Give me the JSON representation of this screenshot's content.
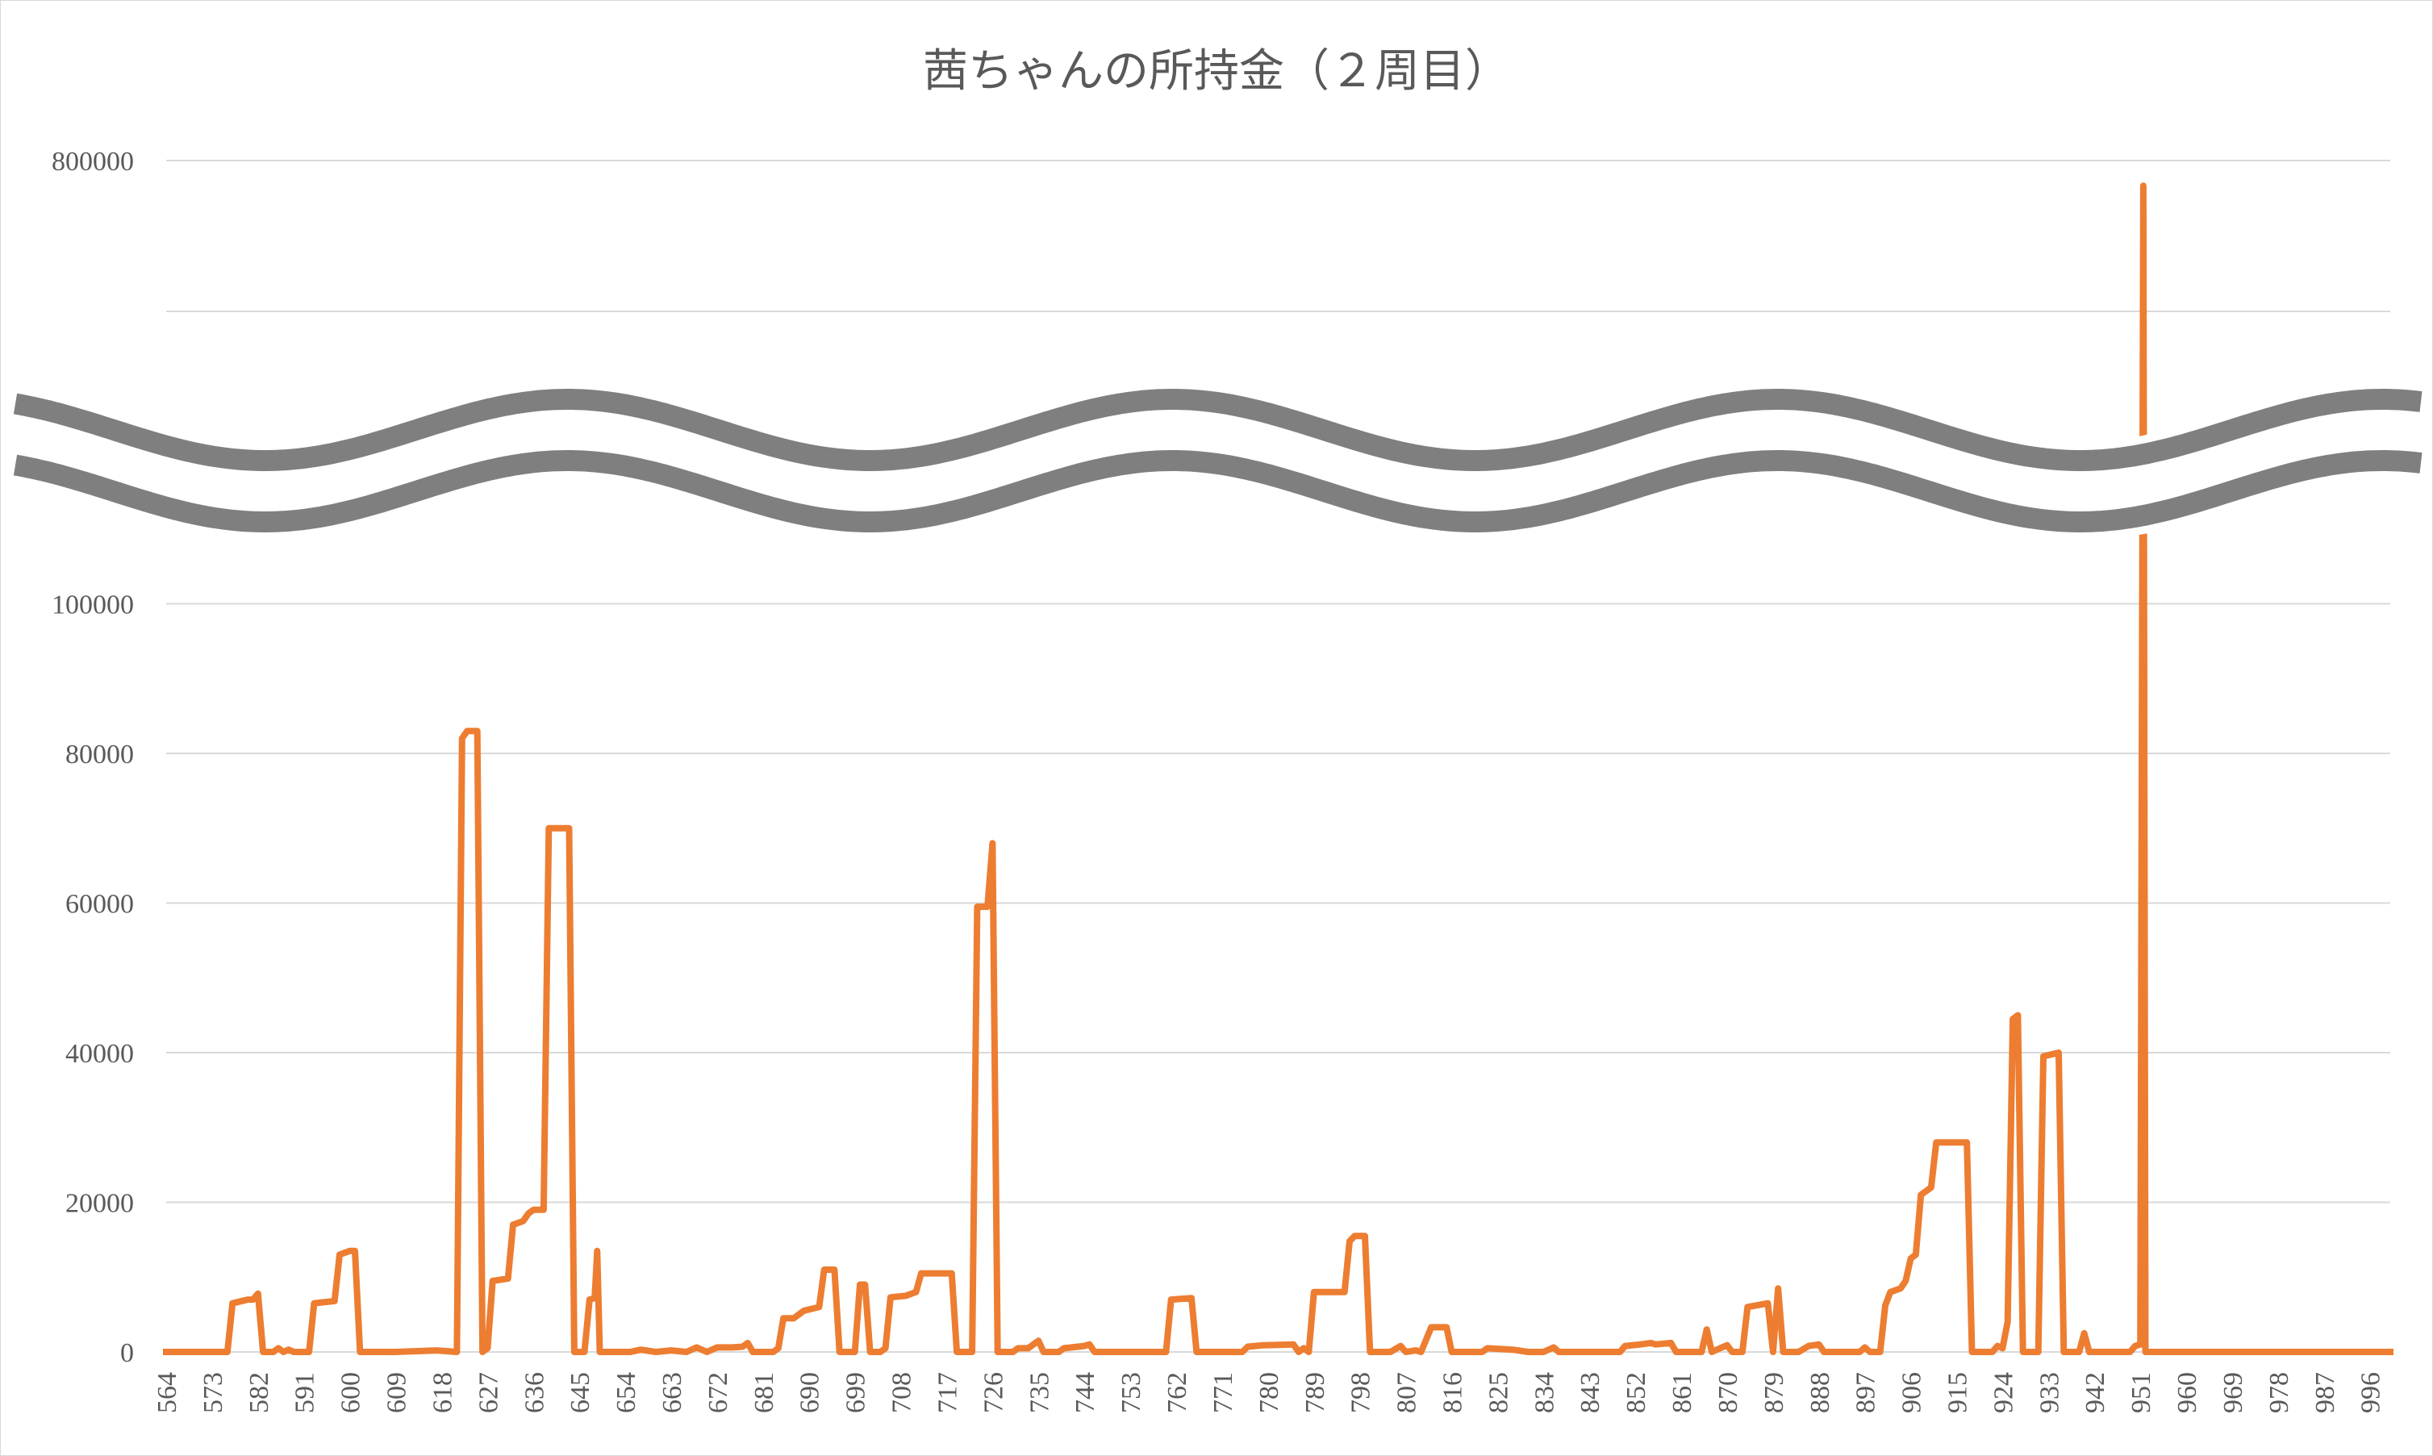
{
  "chart_data": {
    "type": "line",
    "title": "茜ちゃんの所持金（２周目）",
    "xlabel": "",
    "ylabel": "",
    "x_tick_labels": [
      "564",
      "573",
      "582",
      "591",
      "600",
      "609",
      "618",
      "627",
      "636",
      "645",
      "654",
      "663",
      "672",
      "681",
      "690",
      "699",
      "708",
      "717",
      "726",
      "735",
      "744",
      "753",
      "762",
      "771",
      "780",
      "789",
      "798",
      "807",
      "816",
      "825",
      "834",
      "843",
      "852",
      "861",
      "870",
      "879",
      "888",
      "897",
      "906",
      "915",
      "924",
      "933",
      "942",
      "951",
      "960",
      "969",
      "978",
      "987",
      "996"
    ],
    "xlim": [
      564,
      1000
    ],
    "y_ticks": [
      0,
      20000,
      40000,
      60000,
      80000,
      100000,
      800000
    ],
    "y_tick_labels": [
      "0",
      "20000",
      "40000",
      "60000",
      "80000",
      "100000",
      "800000"
    ],
    "y_axis_broken": true,
    "y_break_between": [
      100000,
      800000
    ],
    "grid": true,
    "legend": "none",
    "series": [
      {
        "color": "#ed7d31",
        "points": [
          [
            564,
            0
          ],
          [
            573,
            0
          ],
          [
            576,
            0
          ],
          [
            577,
            6500
          ],
          [
            580,
            7000
          ],
          [
            581,
            7000
          ],
          [
            582,
            7800
          ],
          [
            583,
            0
          ],
          [
            585,
            0
          ],
          [
            586,
            500
          ],
          [
            587,
            0
          ],
          [
            588,
            300
          ],
          [
            589,
            0
          ],
          [
            592,
            0
          ],
          [
            593,
            6500
          ],
          [
            597,
            6800
          ],
          [
            598,
            13000
          ],
          [
            600,
            13500
          ],
          [
            601,
            13500
          ],
          [
            602,
            0
          ],
          [
            609,
            0
          ],
          [
            617,
            200
          ],
          [
            621,
            0
          ],
          [
            622,
            82000
          ],
          [
            623,
            83000
          ],
          [
            625,
            83000
          ],
          [
            626,
            0
          ],
          [
            627,
            500
          ],
          [
            628,
            9500
          ],
          [
            631,
            9800
          ],
          [
            632,
            17000
          ],
          [
            634,
            17500
          ],
          [
            635,
            18500
          ],
          [
            636,
            19000
          ],
          [
            638,
            19000
          ],
          [
            639,
            70000
          ],
          [
            643,
            70000
          ],
          [
            644,
            0
          ],
          [
            646,
            0
          ],
          [
            647,
            7000
          ],
          [
            648,
            7200
          ],
          [
            648.5,
            13500
          ],
          [
            649,
            0
          ],
          [
            655,
            0
          ],
          [
            657,
            300
          ],
          [
            660,
            0
          ],
          [
            663,
            200
          ],
          [
            666,
            0
          ],
          [
            668,
            600
          ],
          [
            670,
            0
          ],
          [
            672,
            600
          ],
          [
            675,
            600
          ],
          [
            677,
            700
          ],
          [
            678,
            1200
          ],
          [
            679,
            0
          ],
          [
            683,
            0
          ],
          [
            684,
            500
          ],
          [
            685,
            4500
          ],
          [
            687,
            4500
          ],
          [
            689,
            5500
          ],
          [
            692,
            6000
          ],
          [
            693,
            11000
          ],
          [
            695,
            11000
          ],
          [
            696,
            0
          ],
          [
            699,
            0
          ],
          [
            700,
            9000
          ],
          [
            701,
            9000
          ],
          [
            702,
            0
          ],
          [
            704,
            0
          ],
          [
            705,
            500
          ],
          [
            706,
            7300
          ],
          [
            709,
            7500
          ],
          [
            711,
            8000
          ],
          [
            712,
            10500
          ],
          [
            718,
            10500
          ],
          [
            719,
            0
          ],
          [
            722,
            0
          ],
          [
            723,
            59500
          ],
          [
            725,
            59500
          ],
          [
            726,
            68000
          ],
          [
            727,
            0
          ],
          [
            730,
            0
          ],
          [
            731,
            500
          ],
          [
            733,
            500
          ],
          [
            735,
            1500
          ],
          [
            736,
            0
          ],
          [
            739,
            0
          ],
          [
            740,
            500
          ],
          [
            744,
            800
          ],
          [
            745,
            1000
          ],
          [
            746,
            0
          ],
          [
            760,
            0
          ],
          [
            761,
            7000
          ],
          [
            765,
            7200
          ],
          [
            766,
            0
          ],
          [
            775,
            0
          ],
          [
            776,
            700
          ],
          [
            779,
            900
          ],
          [
            785,
            1000
          ],
          [
            786,
            0
          ],
          [
            787,
            500
          ],
          [
            788,
            0
          ],
          [
            789,
            8000
          ],
          [
            795,
            8000
          ],
          [
            796,
            14800
          ],
          [
            797,
            15500
          ],
          [
            799,
            15500
          ],
          [
            800,
            0
          ],
          [
            804,
            0
          ],
          [
            806,
            800
          ],
          [
            807,
            0
          ],
          [
            809,
            200
          ],
          [
            810,
            0
          ],
          [
            812,
            3300
          ],
          [
            815,
            3300
          ],
          [
            816,
            0
          ],
          [
            822,
            0
          ],
          [
            823,
            500
          ],
          [
            828,
            300
          ],
          [
            831,
            0
          ],
          [
            834,
            0
          ],
          [
            836,
            600
          ],
          [
            837,
            0
          ],
          [
            849,
            0
          ],
          [
            850,
            800
          ],
          [
            853,
            1000
          ],
          [
            855,
            1200
          ],
          [
            856,
            1000
          ],
          [
            859,
            1200
          ],
          [
            860,
            0
          ],
          [
            865,
            0
          ],
          [
            866,
            3000
          ],
          [
            867,
            0
          ],
          [
            869,
            600
          ],
          [
            870,
            900
          ],
          [
            871,
            0
          ],
          [
            873,
            0
          ],
          [
            874,
            6000
          ],
          [
            878,
            6500
          ],
          [
            879,
            0
          ],
          [
            880,
            8500
          ],
          [
            881,
            0
          ],
          [
            884,
            0
          ],
          [
            886,
            800
          ],
          [
            888,
            1000
          ],
          [
            889,
            0
          ],
          [
            896,
            0
          ],
          [
            897,
            600
          ],
          [
            898,
            0
          ],
          [
            900,
            0
          ],
          [
            901,
            6200
          ],
          [
            902,
            8000
          ],
          [
            904,
            8500
          ],
          [
            905,
            9500
          ],
          [
            906,
            12500
          ],
          [
            907,
            13000
          ],
          [
            908,
            21000
          ],
          [
            910,
            22000
          ],
          [
            911,
            28000
          ],
          [
            917,
            28000
          ],
          [
            918,
            0
          ],
          [
            922,
            0
          ],
          [
            923,
            800
          ],
          [
            924,
            500
          ],
          [
            925,
            4000
          ],
          [
            926,
            44500
          ],
          [
            927,
            45000
          ],
          [
            928,
            0
          ],
          [
            931,
            0
          ],
          [
            932,
            39500
          ],
          [
            935,
            40000
          ],
          [
            936,
            0
          ],
          [
            939,
            0
          ],
          [
            940,
            2500
          ],
          [
            941,
            0
          ],
          [
            949,
            0
          ],
          [
            950,
            800
          ],
          [
            951,
            1000
          ],
          [
            951.6,
            750000
          ],
          [
            952,
            0
          ],
          [
            957,
            0
          ],
          [
            996,
            0
          ],
          [
            1000,
            0
          ]
        ]
      }
    ]
  }
}
